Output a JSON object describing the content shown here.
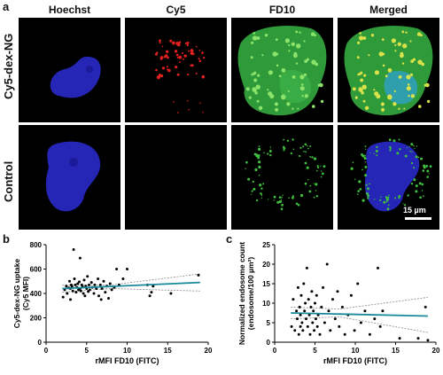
{
  "figure": {
    "panel_a": "a",
    "panel_b": "b",
    "panel_c": "c",
    "columns": [
      "Hoechst",
      "Cy5",
      "FD10",
      "Merged"
    ],
    "rows": [
      "Cy5-dex-NG",
      "Control"
    ],
    "scale_bar": "15 µm"
  },
  "colors": {
    "nucleus": "#2b2bd6",
    "cy5": "#e32020",
    "fd10": "#22a63a",
    "fit_line": "#1a8a9a",
    "ci_line": "#888888"
  },
  "chart_data": [
    {
      "type": "scatter",
      "xlabel": "rMFI FD10 (FITC)",
      "ylabel": "Cy5-dex-NG uptake\n(Cy5 MFI)",
      "xlim": [
        0,
        20
      ],
      "ylim": [
        0,
        800
      ],
      "xticks": [
        0,
        5,
        10,
        15,
        20
      ],
      "yticks": [
        0,
        200,
        400,
        600,
        800
      ],
      "grid": false,
      "points": [
        [
          2.1,
          370
        ],
        [
          2.3,
          430
        ],
        [
          2.5,
          460
        ],
        [
          2.6,
          400
        ],
        [
          2.8,
          445
        ],
        [
          2.9,
          500
        ],
        [
          3.0,
          440
        ],
        [
          3.1,
          470
        ],
        [
          3.2,
          455
        ],
        [
          3.3,
          420
        ],
        [
          3.4,
          760
        ],
        [
          3.5,
          520
        ],
        [
          3.6,
          470
        ],
        [
          3.7,
          410
        ],
        [
          3.8,
          450
        ],
        [
          3.9,
          480
        ],
        [
          4.0,
          430
        ],
        [
          4.1,
          495
        ],
        [
          4.2,
          440
        ],
        [
          4.3,
          420
        ],
        [
          4.4,
          470
        ],
        [
          4.5,
          455
        ],
        [
          4.6,
          400
        ],
        [
          4.7,
          510
        ],
        [
          4.8,
          380
        ],
        [
          4.9,
          460
        ],
        [
          5.0,
          440
        ],
        [
          5.1,
          540
        ],
        [
          5.2,
          415
        ],
        [
          5.3,
          470
        ],
        [
          5.4,
          430
        ],
        [
          5.6,
          490
        ],
        [
          5.7,
          450
        ],
        [
          5.9,
          400
        ],
        [
          6.0,
          470
        ],
        [
          6.2,
          440
        ],
        [
          6.4,
          520
        ],
        [
          6.5,
          380
        ],
        [
          6.7,
          470
        ],
        [
          6.9,
          440
        ],
        [
          7.1,
          500
        ],
        [
          7.3,
          410
        ],
        [
          7.5,
          460
        ],
        [
          7.7,
          360
        ],
        [
          7.9,
          480
        ],
        [
          8.1,
          430
        ],
        [
          8.4,
          450
        ],
        [
          8.7,
          600
        ],
        [
          9.0,
          470
        ],
        [
          9.5,
          520
        ],
        [
          10.0,
          600
        ],
        [
          12.5,
          470
        ],
        [
          12.8,
          380
        ],
        [
          13.0,
          410
        ],
        [
          13.2,
          460
        ],
        [
          15.4,
          400
        ],
        [
          18.8,
          550
        ],
        [
          4.2,
          690
        ],
        [
          3.0,
          350
        ],
        [
          6.8,
          350
        ]
      ],
      "fit": {
        "x": [
          2,
          19
        ],
        "y": [
          440,
          490
        ]
      },
      "ci_upper": {
        "x": [
          2,
          8,
          19
        ],
        "y": [
          470,
          470,
          560
        ]
      },
      "ci_lower": {
        "x": [
          2,
          8,
          19
        ],
        "y": [
          410,
          440,
          420
        ]
      }
    },
    {
      "type": "scatter",
      "xlabel": "rMFI FD10 (FITC)",
      "ylabel": "Normalized endosome count\n(endosome/100 µm²)",
      "xlim": [
        0,
        20
      ],
      "ylim": [
        0,
        25
      ],
      "xticks": [
        0,
        5,
        10,
        15,
        20
      ],
      "yticks": [
        0,
        5,
        10,
        15,
        20,
        25
      ],
      "grid": false,
      "points": [
        [
          2.1,
          4
        ],
        [
          2.3,
          11
        ],
        [
          2.5,
          3
        ],
        [
          2.7,
          8
        ],
        [
          2.8,
          6
        ],
        [
          2.9,
          14
        ],
        [
          3.0,
          2
        ],
        [
          3.1,
          9
        ],
        [
          3.2,
          7
        ],
        [
          3.3,
          12
        ],
        [
          3.4,
          5
        ],
        [
          3.5,
          3
        ],
        [
          3.6,
          15
        ],
        [
          3.7,
          8
        ],
        [
          3.8,
          10
        ],
        [
          3.9,
          6
        ],
        [
          4.0,
          19
        ],
        [
          4.1,
          4
        ],
        [
          4.2,
          11
        ],
        [
          4.3,
          7
        ],
        [
          4.4,
          2
        ],
        [
          4.5,
          9
        ],
        [
          4.6,
          13
        ],
        [
          4.7,
          5
        ],
        [
          4.8,
          8
        ],
        [
          4.9,
          3
        ],
        [
          5.0,
          10
        ],
        [
          5.1,
          6
        ],
        [
          5.2,
          12
        ],
        [
          5.3,
          4
        ],
        [
          5.4,
          7
        ],
        [
          5.6,
          2
        ],
        [
          5.8,
          9
        ],
        [
          6.0,
          14
        ],
        [
          6.2,
          5
        ],
        [
          6.5,
          20
        ],
        [
          6.7,
          8
        ],
        [
          6.9,
          3
        ],
        [
          7.2,
          11
        ],
        [
          7.5,
          6
        ],
        [
          7.8,
          13
        ],
        [
          8.0,
          4
        ],
        [
          8.4,
          9
        ],
        [
          8.7,
          2
        ],
        [
          9.1,
          7
        ],
        [
          9.5,
          12
        ],
        [
          9.9,
          3
        ],
        [
          10.3,
          15
        ],
        [
          10.7,
          5
        ],
        [
          11.2,
          8
        ],
        [
          11.8,
          2
        ],
        [
          12.4,
          6
        ],
        [
          12.8,
          19
        ],
        [
          13.1,
          4
        ],
        [
          13.4,
          8
        ],
        [
          15.5,
          1
        ],
        [
          17.8,
          1
        ],
        [
          18.7,
          9
        ],
        [
          19.0,
          0.5
        ],
        [
          3.2,
          4
        ]
      ],
      "fit": {
        "x": [
          2,
          19
        ],
        "y": [
          7.5,
          6.7
        ]
      },
      "ci_upper": {
        "x": [
          2,
          8,
          19
        ],
        "y": [
          9.0,
          8.5,
          11.5
        ]
      },
      "ci_lower": {
        "x": [
          2,
          8,
          19
        ],
        "y": [
          6.0,
          6.5,
          2.5
        ]
      }
    }
  ]
}
